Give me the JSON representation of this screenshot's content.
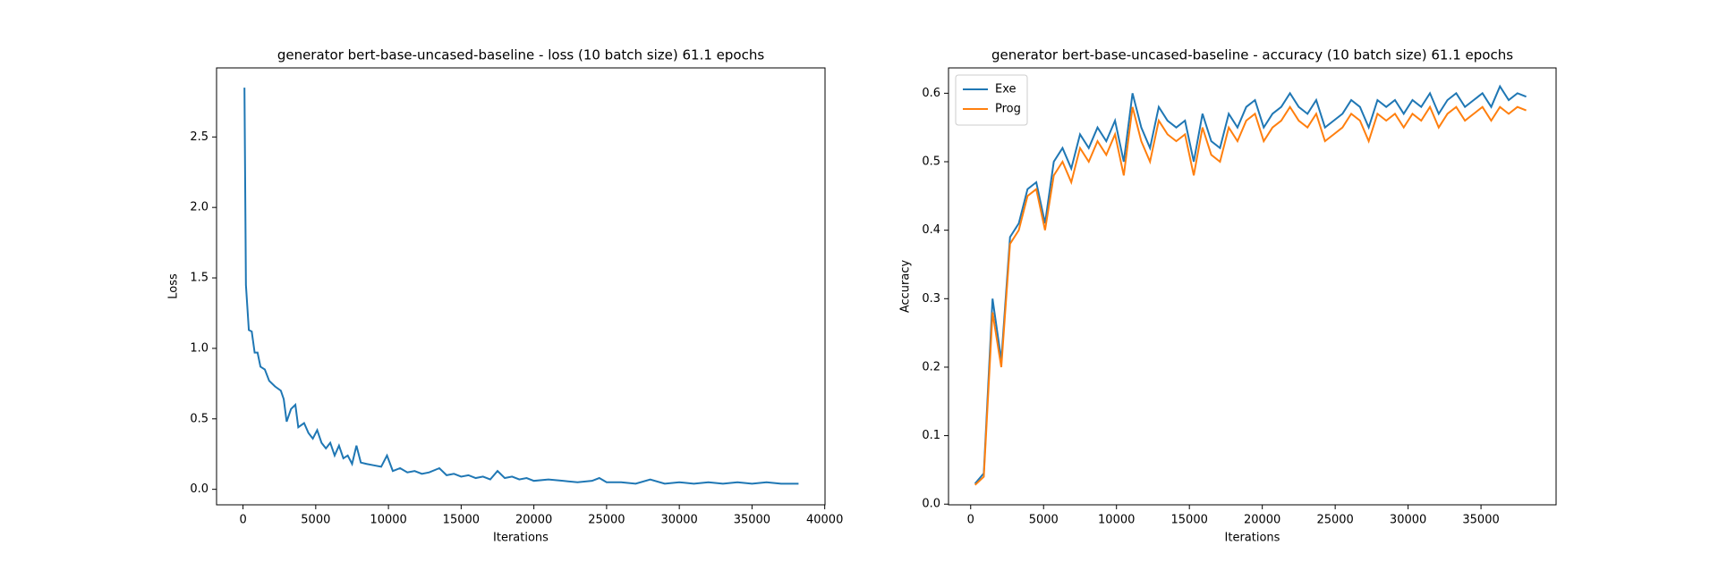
{
  "chart_data": [
    {
      "type": "line",
      "title": "generator bert-base-uncased-baseline - loss (10 batch size) 61.1 epochs",
      "xlabel": "Iterations",
      "ylabel": "Loss",
      "color": "#1f77b4",
      "x": [
        100,
        200,
        400,
        600,
        800,
        1000,
        1200,
        1500,
        1800,
        2200,
        2600,
        2800,
        3000,
        3300,
        3600,
        3800,
        4200,
        4500,
        4800,
        5100,
        5400,
        5700,
        6000,
        6300,
        6600,
        6900,
        7200,
        7500,
        7800,
        8100,
        8500,
        9000,
        9500,
        9900,
        10300,
        10800,
        11300,
        11800,
        12300,
        12800,
        13500,
        14000,
        14500,
        15000,
        15500,
        16000,
        16500,
        17000,
        17500,
        18000,
        18500,
        19000,
        19500,
        20000,
        21000,
        22000,
        23000,
        24000,
        24500,
        25000,
        26000,
        27000,
        28000,
        29000,
        30000,
        31000,
        32000,
        33000,
        34000,
        35000,
        36000,
        37000,
        38200
      ],
      "values": [
        2.85,
        1.45,
        1.13,
        1.12,
        0.97,
        0.97,
        0.87,
        0.85,
        0.77,
        0.73,
        0.7,
        0.64,
        0.48,
        0.57,
        0.6,
        0.44,
        0.47,
        0.4,
        0.36,
        0.42,
        0.33,
        0.29,
        0.33,
        0.24,
        0.31,
        0.22,
        0.24,
        0.18,
        0.31,
        0.19,
        0.18,
        0.17,
        0.16,
        0.24,
        0.13,
        0.15,
        0.12,
        0.13,
        0.11,
        0.12,
        0.15,
        0.1,
        0.11,
        0.09,
        0.1,
        0.08,
        0.09,
        0.07,
        0.13,
        0.08,
        0.09,
        0.07,
        0.08,
        0.06,
        0.07,
        0.06,
        0.05,
        0.06,
        0.08,
        0.05,
        0.05,
        0.04,
        0.07,
        0.04,
        0.05,
        0.04,
        0.05,
        0.04,
        0.05,
        0.04,
        0.05,
        0.04,
        0.04
      ],
      "xlim": [
        -1820,
        40020
      ],
      "ylim": [
        -0.11,
        2.99
      ],
      "xticks": [
        0,
        5000,
        10000,
        15000,
        20000,
        25000,
        30000,
        35000,
        40000
      ],
      "yticks": [
        {
          "value": 0,
          "label": "0.0"
        },
        0.5,
        {
          "value": 1,
          "label": "1.0"
        },
        1.5,
        {
          "value": 2,
          "label": "2.0"
        },
        2.5
      ]
    },
    {
      "type": "line",
      "title": "generator bert-base-uncased-baseline - accuracy (10 batch size) 61.1 epochs",
      "xlabel": "Iterations",
      "ylabel": "Accuracy",
      "legend": "upper left",
      "x": [
        300,
        900,
        1500,
        2100,
        2700,
        3300,
        3900,
        4500,
        5100,
        5700,
        6300,
        6900,
        7500,
        8100,
        8700,
        9300,
        9900,
        10500,
        11100,
        11700,
        12300,
        12900,
        13500,
        14100,
        14700,
        15300,
        15900,
        16500,
        17100,
        17700,
        18300,
        18900,
        19500,
        20100,
        20700,
        21300,
        21900,
        22500,
        23100,
        23700,
        24300,
        24900,
        25500,
        26100,
        26700,
        27300,
        27900,
        28500,
        29100,
        29700,
        30300,
        30900,
        31500,
        32100,
        32700,
        33300,
        33900,
        34500,
        35100,
        35700,
        36300,
        36900,
        37500,
        38100
      ],
      "series": [
        {
          "name": "Exe",
          "color": "#1f77b4",
          "values": [
            0.03,
            0.045,
            0.3,
            0.21,
            0.39,
            0.41,
            0.46,
            0.47,
            0.41,
            0.5,
            0.52,
            0.49,
            0.54,
            0.52,
            0.55,
            0.53,
            0.56,
            0.5,
            0.6,
            0.55,
            0.52,
            0.58,
            0.56,
            0.55,
            0.56,
            0.5,
            0.57,
            0.53,
            0.52,
            0.57,
            0.55,
            0.58,
            0.59,
            0.55,
            0.57,
            0.58,
            0.6,
            0.58,
            0.57,
            0.59,
            0.55,
            0.56,
            0.57,
            0.59,
            0.58,
            0.55,
            0.59,
            0.58,
            0.59,
            0.57,
            0.59,
            0.58,
            0.6,
            0.57,
            0.59,
            0.6,
            0.58,
            0.59,
            0.6,
            0.58,
            0.61,
            0.59,
            0.6,
            0.595
          ]
        },
        {
          "name": "Prog",
          "color": "#ff7f0e",
          "values": [
            0.028,
            0.04,
            0.28,
            0.2,
            0.38,
            0.4,
            0.45,
            0.46,
            0.4,
            0.48,
            0.5,
            0.47,
            0.52,
            0.5,
            0.53,
            0.51,
            0.54,
            0.48,
            0.58,
            0.53,
            0.5,
            0.56,
            0.54,
            0.53,
            0.54,
            0.48,
            0.55,
            0.51,
            0.5,
            0.55,
            0.53,
            0.56,
            0.57,
            0.53,
            0.55,
            0.56,
            0.58,
            0.56,
            0.55,
            0.57,
            0.53,
            0.54,
            0.55,
            0.57,
            0.56,
            0.53,
            0.57,
            0.56,
            0.57,
            0.55,
            0.57,
            0.56,
            0.58,
            0.55,
            0.57,
            0.58,
            0.56,
            0.57,
            0.58,
            0.56,
            0.58,
            0.57,
            0.58,
            0.575
          ]
        }
      ],
      "xlim": [
        -1520,
        40150
      ],
      "ylim": [
        -0.001,
        0.637
      ],
      "xticks": [
        0,
        5000,
        10000,
        15000,
        20000,
        25000,
        30000,
        35000
      ],
      "yticks": [
        {
          "value": 0,
          "label": "0.0"
        },
        0.1,
        0.2,
        0.3,
        0.4,
        0.5,
        0.6
      ]
    }
  ]
}
